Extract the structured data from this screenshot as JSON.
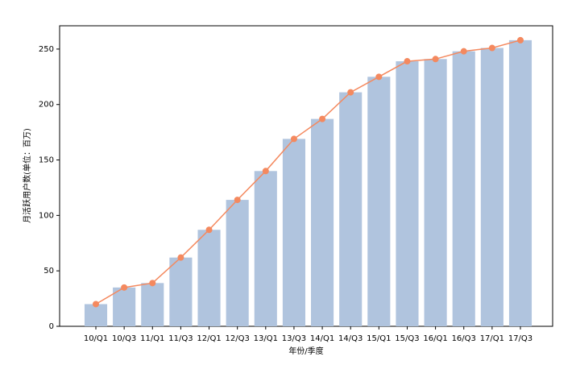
{
  "chart_data": {
    "type": "bar_line",
    "x_label": "年份/季度",
    "y_label": "月活跃用户数(单位：百万)",
    "categories": [
      "10/Q1",
      "10/Q3",
      "11/Q1",
      "11/Q3",
      "12/Q1",
      "12/Q3",
      "13/Q1",
      "13/Q3",
      "14/Q1",
      "14/Q3",
      "15/Q1",
      "15/Q3",
      "16/Q1",
      "16/Q3",
      "17/Q1",
      "17/Q3"
    ],
    "values": [
      20,
      35,
      39,
      62,
      87,
      114,
      140,
      169,
      187,
      211,
      225,
      239,
      241,
      248,
      251,
      258
    ],
    "bar_color": "#b0c4de",
    "line_color": "#f4895f",
    "ylim": [
      0,
      271
    ],
    "yticks": [
      0,
      50,
      100,
      150,
      200,
      250
    ],
    "grid": false
  }
}
